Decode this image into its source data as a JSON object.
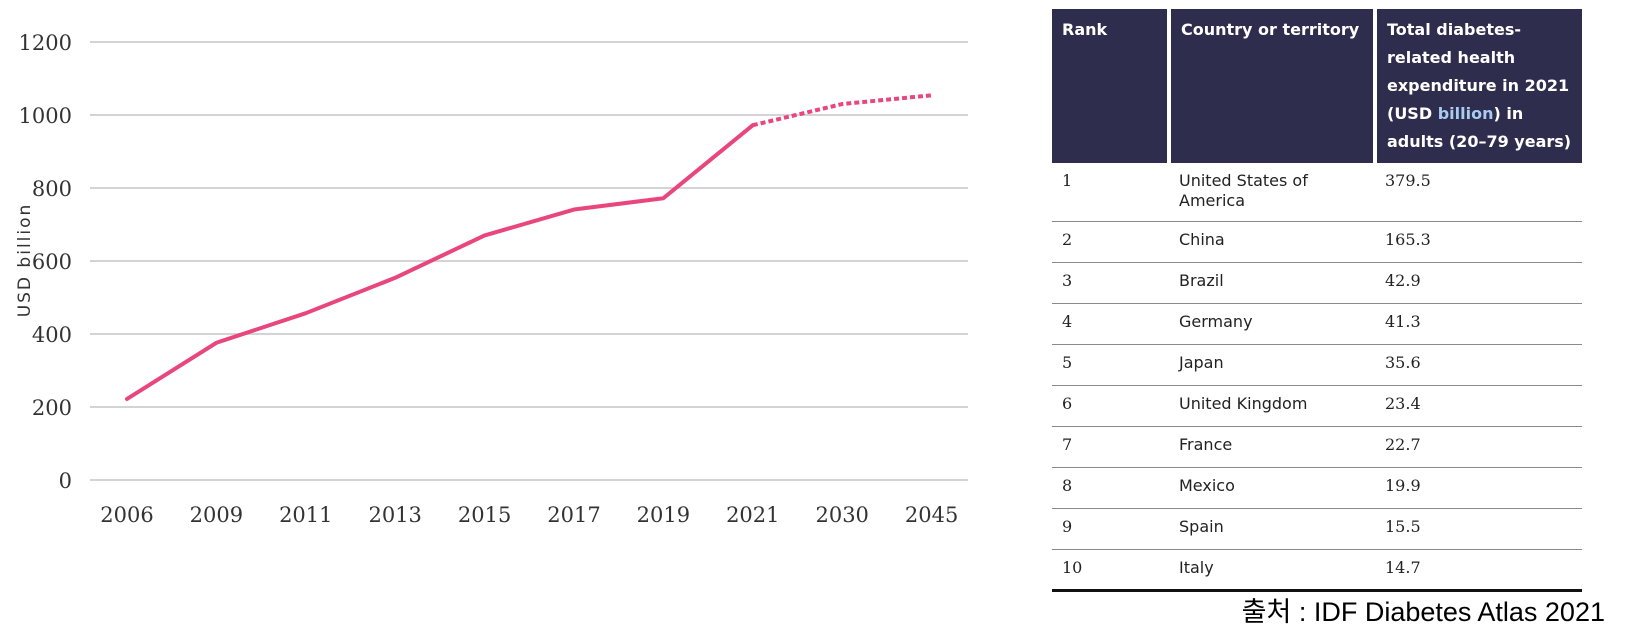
{
  "chart_data": {
    "type": "line",
    "ylabel": "USD billion",
    "categories": [
      "2006",
      "2009",
      "2011",
      "2013",
      "2015",
      "2017",
      "2019",
      "2021",
      "2030",
      "2045"
    ],
    "yticks": [
      0,
      200,
      400,
      600,
      800,
      1000,
      1200
    ],
    "ylim": [
      0,
      1200
    ],
    "series": [
      {
        "style": "solid",
        "values": [
          222,
          376,
          457,
          554,
          670,
          741,
          772,
          972,
          null,
          null
        ]
      },
      {
        "style": "dotted",
        "values": [
          null,
          null,
          null,
          null,
          null,
          null,
          null,
          972,
          1030,
          1054
        ]
      }
    ],
    "line_color": "#e8467c",
    "grid": true
  },
  "table": {
    "headers": {
      "rank": "Rank",
      "country": "Country or territory",
      "expenditure_pre": "Total diabetes-related health expenditure  in 2021 (USD ",
      "expenditure_hl": "billion",
      "expenditure_post": ") in adults (20–79 years)"
    },
    "rows": [
      {
        "rank": "1",
        "country": "United States of America",
        "value": "379.5"
      },
      {
        "rank": "2",
        "country": "China",
        "value": "165.3"
      },
      {
        "rank": "3",
        "country": "Brazil",
        "value": "42.9"
      },
      {
        "rank": "4",
        "country": "Germany",
        "value": "41.3"
      },
      {
        "rank": "5",
        "country": "Japan",
        "value": "35.6"
      },
      {
        "rank": "6",
        "country": "United Kingdom",
        "value": "23.4"
      },
      {
        "rank": "7",
        "country": "France",
        "value": "22.7"
      },
      {
        "rank": "8",
        "country": "Mexico",
        "value": "19.9"
      },
      {
        "rank": "9",
        "country": "Spain",
        "value": "15.5"
      },
      {
        "rank": "10",
        "country": "Italy",
        "value": "14.7"
      }
    ],
    "header_color": "#2e2d4d"
  },
  "source": "출처 :  IDF Diabetes Atlas 2021"
}
